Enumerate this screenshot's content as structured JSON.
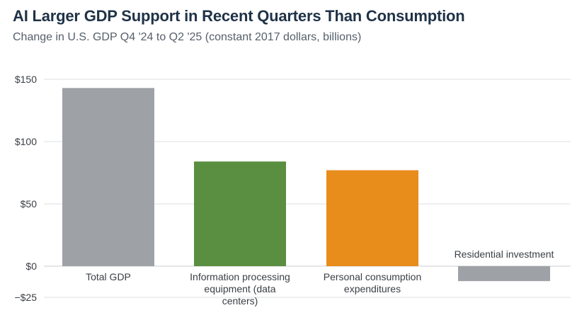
{
  "chart_data": {
    "type": "bar",
    "title": "AI Larger GDP Support in Recent Quarters Than Consumption",
    "subtitle": "Change in U.S. GDP Q4 '24 to Q2 '25 (constant 2017 dollars, billions)",
    "xlabel": "",
    "ylabel": "",
    "ylim": [
      -25,
      150
    ],
    "yticks": [
      {
        "value": 150,
        "label": "$150"
      },
      {
        "value": 100,
        "label": "$100"
      },
      {
        "value": 50,
        "label": "$50"
      },
      {
        "value": 0,
        "label": "$0"
      },
      {
        "value": -25,
        "label": "−$25"
      }
    ],
    "grid": true,
    "bars": [
      {
        "category": "Total GDP",
        "label_lines": [
          "Total GDP"
        ],
        "value": 143,
        "color": "#9ea2a6"
      },
      {
        "category": "Information processing equipment (data centers)",
        "label_lines": [
          "Information processing",
          "equipment (data",
          "centers)"
        ],
        "value": 84,
        "color": "#5a8f41"
      },
      {
        "category": "Personal consumption expenditures",
        "label_lines": [
          "Personal consumption",
          "expenditures"
        ],
        "value": 77,
        "color": "#e88c1c"
      },
      {
        "category": "Residential investment",
        "label_lines": [
          "Residential investment"
        ],
        "value": -12,
        "color": "#9ea2a6"
      }
    ]
  }
}
